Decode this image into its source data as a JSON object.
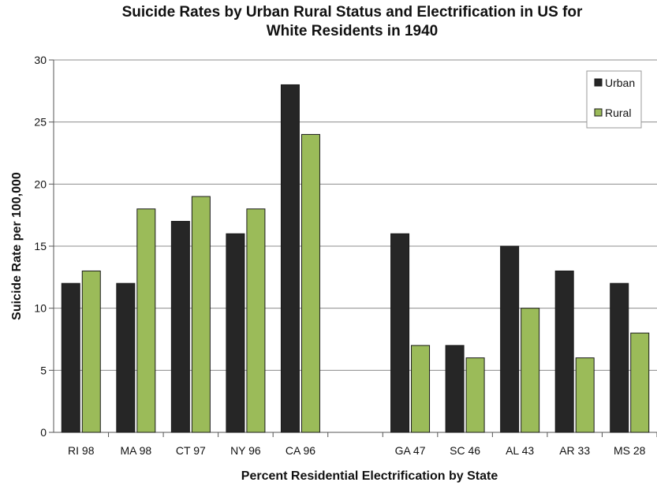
{
  "chart_data": {
    "type": "bar",
    "title_line1": "Suicide Rates by Urban Rural Status and Electrification in US for",
    "title_line2": "White Residents in 1940",
    "xlabel": "Percent Residential Electrification by State",
    "ylabel": "Suicide Rate per 100,000",
    "ylim": [
      0,
      30
    ],
    "yticks": [
      "0",
      "5",
      "10",
      "15",
      "20",
      "25",
      "30"
    ],
    "categories": [
      "RI 98",
      "MA 98",
      "CT 97",
      "NY 96",
      "CA 96",
      "",
      "GA 47",
      "SC 46",
      "AL 43",
      "AR 33",
      "MS 28"
    ],
    "series": [
      {
        "name": "Urban",
        "color": "#262626",
        "values": [
          12,
          12,
          17,
          16,
          28,
          null,
          16,
          7,
          15,
          13,
          12
        ]
      },
      {
        "name": "Rural",
        "color": "#9bbb59",
        "values": [
          13,
          18,
          19,
          18,
          24,
          null,
          7,
          6,
          10,
          6,
          8
        ]
      }
    ],
    "grid": true,
    "legend_position": "top-right"
  }
}
